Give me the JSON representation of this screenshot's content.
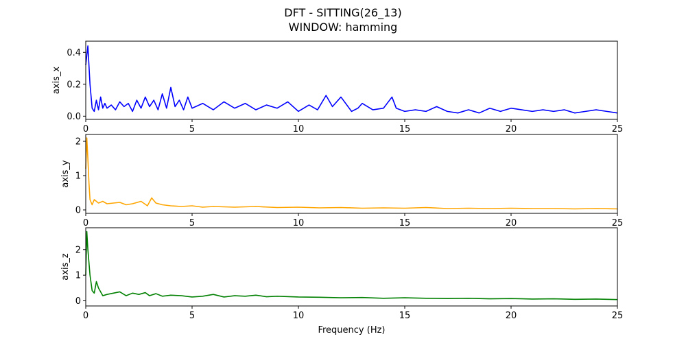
{
  "figure": {
    "title_line1": "DFT - SITTING(26_13)",
    "title_line2": "WINDOW: hamming"
  },
  "chart_data": [
    {
      "type": "line",
      "ylabel": "axis_x",
      "xlabel": "",
      "color": "#0000ff",
      "xlim": [
        0,
        25
      ],
      "ylim": [
        -0.02,
        0.47
      ],
      "xticks": [
        0,
        5,
        10,
        15,
        20,
        25
      ],
      "yticks": [
        0.0,
        0.2,
        0.4
      ],
      "ytick_labels": [
        "0.0",
        "0.2",
        "0.4"
      ],
      "x": [
        0,
        0.1,
        0.2,
        0.3,
        0.4,
        0.5,
        0.6,
        0.7,
        0.8,
        0.9,
        1.0,
        1.2,
        1.4,
        1.6,
        1.8,
        2.0,
        2.2,
        2.4,
        2.6,
        2.8,
        3.0,
        3.2,
        3.4,
        3.6,
        3.8,
        4.0,
        4.2,
        4.4,
        4.6,
        4.8,
        5.0,
        5.5,
        6.0,
        6.5,
        7.0,
        7.5,
        8.0,
        8.5,
        9.0,
        9.5,
        10.0,
        10.5,
        10.9,
        11.3,
        11.6,
        12.0,
        12.5,
        12.8,
        13.0,
        13.5,
        14.0,
        14.4,
        14.6,
        15.0,
        15.5,
        16.0,
        16.5,
        17.0,
        17.5,
        18.0,
        18.5,
        19.0,
        19.5,
        20.0,
        20.5,
        21.0,
        21.5,
        22.0,
        22.5,
        23.0,
        23.5,
        24.0,
        24.5,
        25.0
      ],
      "y": [
        0.32,
        0.44,
        0.2,
        0.05,
        0.03,
        0.1,
        0.04,
        0.12,
        0.05,
        0.08,
        0.05,
        0.07,
        0.04,
        0.09,
        0.06,
        0.08,
        0.03,
        0.1,
        0.05,
        0.12,
        0.06,
        0.1,
        0.04,
        0.14,
        0.05,
        0.18,
        0.06,
        0.1,
        0.04,
        0.12,
        0.05,
        0.08,
        0.04,
        0.09,
        0.05,
        0.08,
        0.04,
        0.07,
        0.05,
        0.09,
        0.03,
        0.07,
        0.04,
        0.13,
        0.06,
        0.12,
        0.03,
        0.05,
        0.08,
        0.04,
        0.05,
        0.12,
        0.05,
        0.03,
        0.04,
        0.03,
        0.06,
        0.03,
        0.02,
        0.04,
        0.02,
        0.05,
        0.03,
        0.05,
        0.04,
        0.03,
        0.04,
        0.03,
        0.04,
        0.02,
        0.03,
        0.04,
        0.03,
        0.02
      ]
    },
    {
      "type": "line",
      "ylabel": "axis_y",
      "xlabel": "",
      "color": "#ffa500",
      "xlim": [
        0,
        25
      ],
      "ylim": [
        -0.1,
        2.2
      ],
      "xticks": [
        0,
        5,
        10,
        15,
        20,
        25
      ],
      "yticks": [
        0,
        1,
        2
      ],
      "ytick_labels": [
        "0",
        "1",
        "2"
      ],
      "x": [
        0,
        0.05,
        0.1,
        0.15,
        0.2,
        0.3,
        0.4,
        0.6,
        0.8,
        1.0,
        1.3,
        1.6,
        1.9,
        2.2,
        2.6,
        2.9,
        3.1,
        3.3,
        3.6,
        4.0,
        4.5,
        5.0,
        5.5,
        6.0,
        6.5,
        7.0,
        8.0,
        9.0,
        10.0,
        11.0,
        12.0,
        13.0,
        14.0,
        15.0,
        16.0,
        17.0,
        18.0,
        19.0,
        20.0,
        21.0,
        22.0,
        23.0,
        24.0,
        25.0
      ],
      "y": [
        1.2,
        2.1,
        1.5,
        0.8,
        0.3,
        0.15,
        0.3,
        0.2,
        0.25,
        0.18,
        0.2,
        0.22,
        0.15,
        0.18,
        0.25,
        0.12,
        0.35,
        0.2,
        0.15,
        0.12,
        0.1,
        0.12,
        0.08,
        0.1,
        0.09,
        0.08,
        0.1,
        0.07,
        0.08,
        0.06,
        0.07,
        0.05,
        0.06,
        0.05,
        0.07,
        0.04,
        0.05,
        0.04,
        0.05,
        0.04,
        0.04,
        0.03,
        0.04,
        0.03
      ]
    },
    {
      "type": "line",
      "ylabel": "axis_z",
      "xlabel": "Frequency (Hz)",
      "color": "#008000",
      "xlim": [
        0,
        25
      ],
      "ylim": [
        -0.2,
        2.85
      ],
      "xticks": [
        0,
        5,
        10,
        15,
        20,
        25
      ],
      "yticks": [
        0,
        1,
        2
      ],
      "ytick_labels": [
        "0",
        "1",
        "2"
      ],
      "x": [
        0,
        0.05,
        0.1,
        0.2,
        0.3,
        0.4,
        0.5,
        0.6,
        0.8,
        1.0,
        1.3,
        1.6,
        1.9,
        2.2,
        2.5,
        2.8,
        3.0,
        3.3,
        3.6,
        4.0,
        4.5,
        5.0,
        5.5,
        6.0,
        6.5,
        7.0,
        7.5,
        8.0,
        8.5,
        9.0,
        10.0,
        11.0,
        12.0,
        13.0,
        14.0,
        15.0,
        16.0,
        17.0,
        18.0,
        19.0,
        20.0,
        21.0,
        22.0,
        23.0,
        24.0,
        25.0
      ],
      "y": [
        1.0,
        2.7,
        2.0,
        1.0,
        0.4,
        0.3,
        0.75,
        0.5,
        0.2,
        0.25,
        0.3,
        0.35,
        0.2,
        0.3,
        0.25,
        0.32,
        0.2,
        0.28,
        0.18,
        0.22,
        0.2,
        0.15,
        0.18,
        0.25,
        0.15,
        0.2,
        0.18,
        0.22,
        0.16,
        0.18,
        0.15,
        0.14,
        0.12,
        0.13,
        0.1,
        0.12,
        0.1,
        0.09,
        0.1,
        0.08,
        0.09,
        0.07,
        0.08,
        0.06,
        0.07,
        0.05
      ]
    }
  ]
}
